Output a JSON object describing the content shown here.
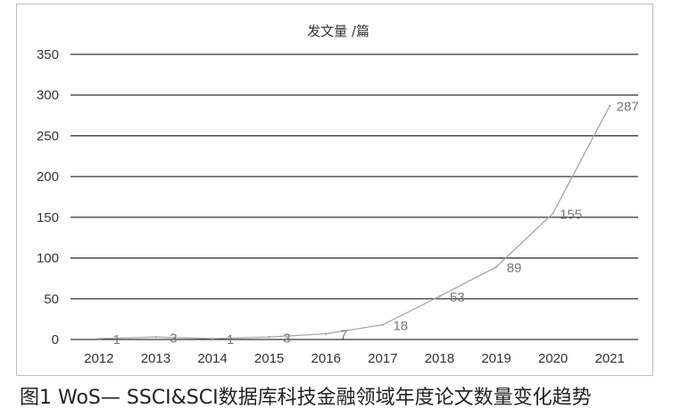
{
  "chart_data": {
    "type": "line",
    "title": "",
    "ylabel": "发文量 /篇",
    "xlabel": "",
    "categories": [
      "2012",
      "2013",
      "2014",
      "2015",
      "2016",
      "2017",
      "2018",
      "2019",
      "2020",
      "2021"
    ],
    "series": [
      {
        "values": [
          1,
          3,
          1,
          3,
          7,
          18,
          53,
          89,
          155,
          287
        ]
      }
    ],
    "ylim": [
      0,
      350
    ],
    "yticks": [
      0,
      50,
      100,
      150,
      200,
      250,
      300,
      350
    ],
    "grid": true,
    "legend": "none",
    "line_color": "#a6a6a6",
    "grid_color": "#000000"
  },
  "caption": "图1  WoS— SSCI&SCI数据库科技金融领域年度论文数量变化趋势"
}
